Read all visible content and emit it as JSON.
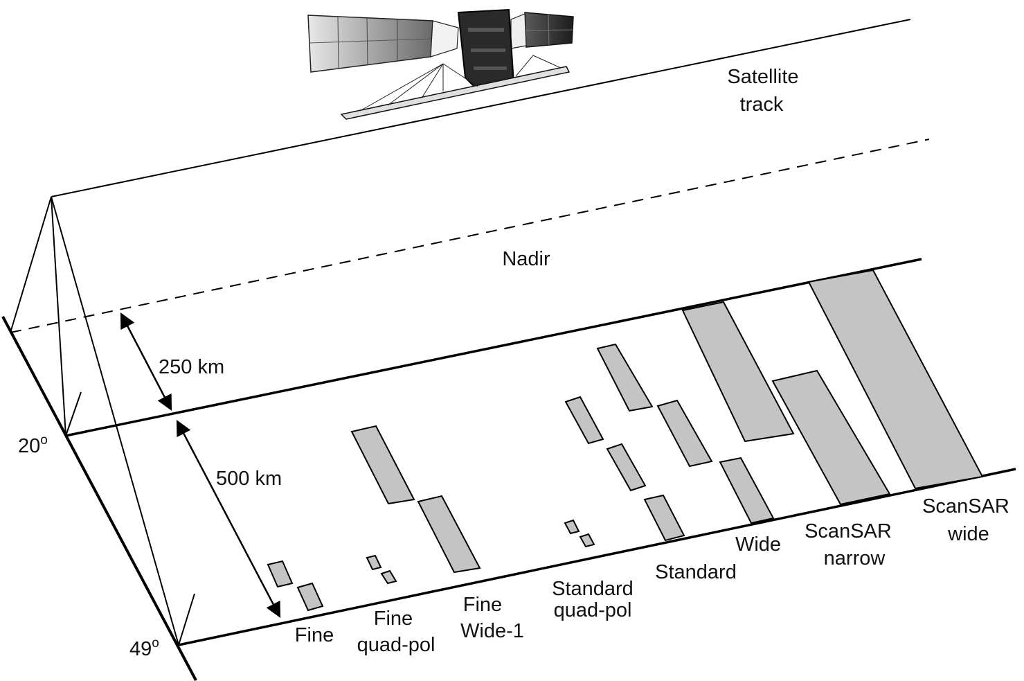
{
  "labels": {
    "satellite_track": [
      "Satellite",
      "track"
    ],
    "nadir": "Nadir",
    "dist_250": "250 km",
    "dist_500": "500 km",
    "angle_20": "20",
    "angle_49": "49",
    "degree_mark": "o"
  },
  "modes": {
    "fine": [
      "Fine"
    ],
    "fine_quad": [
      "Fine",
      "quad-pol"
    ],
    "fine_wide": [
      "Fine",
      "Wide-1"
    ],
    "standard_quad": [
      "Standard",
      "quad-pol"
    ],
    "standard": [
      "Standard"
    ],
    "wide": [
      "Wide"
    ],
    "scansar_narrow": [
      "ScanSAR",
      "narrow"
    ],
    "scansar_wide": [
      "ScanSAR",
      "wide"
    ]
  },
  "colors": {
    "swath_fill": "#c4c4c4",
    "line": "#000000",
    "text": "#111111"
  },
  "icons": {
    "satellite": "satellite-icon"
  }
}
